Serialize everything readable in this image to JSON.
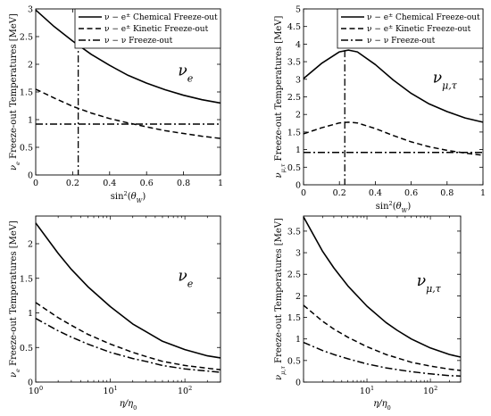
{
  "chart_data": [
    {
      "type": "line",
      "panel": "top-left",
      "xlabel": "sin²(θ_W)",
      "ylabel": "ν_e Freeze-out Temperatures [MeV]",
      "annotation": "ν_e",
      "xscale": "linear",
      "xlim": [
        0,
        1
      ],
      "ylim": [
        0,
        3
      ],
      "xticks": [
        "0",
        "0.2",
        "0.4",
        "0.6",
        "0.8",
        "1"
      ],
      "yticks": [
        "0",
        "0.5",
        "1",
        "1.5",
        "2",
        "2.5",
        "3"
      ],
      "vline_x": 0.23,
      "legend": {
        "placement": "top-right",
        "entries": [
          "ν − e± Chemical Freeze-out",
          "ν − e± Kinetic Freeze-out",
          "ν − ν Freeze-out"
        ]
      },
      "x": [
        0,
        0.1,
        0.2,
        0.3,
        0.4,
        0.5,
        0.6,
        0.7,
        0.8,
        0.9,
        1.0
      ],
      "series": [
        {
          "name": "ν − e± Chemical Freeze-out",
          "style": "solid",
          "values": [
            2.98,
            2.68,
            2.42,
            2.18,
            1.98,
            1.8,
            1.66,
            1.54,
            1.44,
            1.36,
            1.3
          ]
        },
        {
          "name": "ν − e± Kinetic Freeze-out",
          "style": "dashed",
          "values": [
            1.55,
            1.39,
            1.24,
            1.12,
            1.02,
            0.94,
            0.87,
            0.8,
            0.75,
            0.7,
            0.66
          ]
        },
        {
          "name": "ν − ν Freeze-out",
          "style": "dashdot",
          "values": [
            0.92,
            0.92,
            0.92,
            0.92,
            0.92,
            0.92,
            0.92,
            0.92,
            0.92,
            0.92,
            0.92
          ]
        }
      ]
    },
    {
      "type": "line",
      "panel": "top-right",
      "xlabel": "sin²(θ_W)",
      "ylabel": "ν_μ,τ Freeze-out Temperatures [MeV]",
      "annotation": "ν_μ,τ",
      "xscale": "linear",
      "xlim": [
        0,
        1
      ],
      "ylim": [
        0,
        5
      ],
      "xticks": [
        "0",
        "0.2",
        "0.4",
        "0.6",
        "0.8",
        "1"
      ],
      "yticks": [
        "0",
        "0.5",
        "1",
        "1.5",
        "2",
        "2.5",
        "3",
        "3.5",
        "4",
        "4.5",
        "5"
      ],
      "vline_x": 0.23,
      "legend": {
        "placement": "top-right",
        "entries": [
          "ν − e± Chemical Freeze-out",
          "ν − e± Kinetic Freeze-out",
          "ν − ν Freeze-out"
        ]
      },
      "x": [
        0,
        0.1,
        0.2,
        0.25,
        0.3,
        0.4,
        0.5,
        0.6,
        0.7,
        0.8,
        0.9,
        1.0
      ],
      "series": [
        {
          "name": "ν − e± Chemical Freeze-out",
          "style": "solid",
          "values": [
            3.02,
            3.45,
            3.78,
            3.83,
            3.78,
            3.42,
            2.98,
            2.6,
            2.3,
            2.08,
            1.9,
            1.78
          ]
        },
        {
          "name": "ν − e± Kinetic Freeze-out",
          "style": "dashed",
          "values": [
            1.45,
            1.62,
            1.76,
            1.78,
            1.76,
            1.6,
            1.4,
            1.22,
            1.08,
            0.98,
            0.9,
            0.84
          ]
        },
        {
          "name": "ν − ν Freeze-out",
          "style": "dashdot",
          "values": [
            0.92,
            0.92,
            0.92,
            0.92,
            0.92,
            0.92,
            0.92,
            0.92,
            0.92,
            0.92,
            0.92,
            0.92
          ]
        }
      ]
    },
    {
      "type": "line",
      "panel": "bottom-left",
      "xlabel": "η/η₀",
      "ylabel": "ν_e Freeze-out Temperatures [MeV]",
      "annotation": "ν_e",
      "xscale": "log",
      "xlim": [
        1,
        300
      ],
      "ylim": [
        0,
        2.4
      ],
      "xticks": [
        {
          "base": "10",
          "exp": "0",
          "value": 1
        },
        {
          "base": "10",
          "exp": "1",
          "value": 10
        },
        {
          "base": "10",
          "exp": "2",
          "value": 100
        }
      ],
      "yticks": [
        "0",
        "0.5",
        "1",
        "1.5",
        "2"
      ],
      "x": [
        1,
        2,
        3,
        5,
        10,
        20,
        30,
        50,
        100,
        200,
        300
      ],
      "series": [
        {
          "style": "solid",
          "values": [
            2.3,
            1.86,
            1.63,
            1.38,
            1.09,
            0.84,
            0.73,
            0.59,
            0.47,
            0.38,
            0.35
          ]
        },
        {
          "style": "dashed",
          "values": [
            1.15,
            0.93,
            0.82,
            0.69,
            0.55,
            0.43,
            0.37,
            0.3,
            0.24,
            0.2,
            0.18
          ]
        },
        {
          "style": "dashdot",
          "values": [
            0.92,
            0.74,
            0.65,
            0.55,
            0.43,
            0.34,
            0.3,
            0.24,
            0.19,
            0.16,
            0.14
          ]
        }
      ]
    },
    {
      "type": "line",
      "panel": "bottom-right",
      "xlabel": "η/η₀",
      "ylabel": "ν_μ,τ Freeze-out Temperatures [MeV]",
      "annotation": "ν_μ,τ",
      "xscale": "log",
      "xlim": [
        1,
        300
      ],
      "ylim": [
        0,
        3.85
      ],
      "xticks": [
        {
          "base": "10",
          "exp": "1",
          "value": 10
        },
        {
          "base": "10",
          "exp": "2",
          "value": 100
        }
      ],
      "yticks": [
        "0",
        "0.5",
        "1",
        "1.5",
        "2",
        "2.5",
        "3",
        "3.5"
      ],
      "x": [
        1,
        2,
        3,
        5,
        10,
        20,
        30,
        50,
        100,
        200,
        300
      ],
      "series": [
        {
          "style": "solid",
          "values": [
            3.83,
            3.03,
            2.65,
            2.23,
            1.76,
            1.38,
            1.2,
            1.0,
            0.79,
            0.64,
            0.58
          ]
        },
        {
          "style": "dashed",
          "values": [
            1.78,
            1.41,
            1.23,
            1.04,
            0.82,
            0.64,
            0.56,
            0.46,
            0.37,
            0.3,
            0.27
          ]
        },
        {
          "style": "dashdot",
          "values": [
            0.92,
            0.73,
            0.64,
            0.54,
            0.42,
            0.33,
            0.29,
            0.24,
            0.19,
            0.15,
            0.14
          ]
        }
      ]
    }
  ]
}
